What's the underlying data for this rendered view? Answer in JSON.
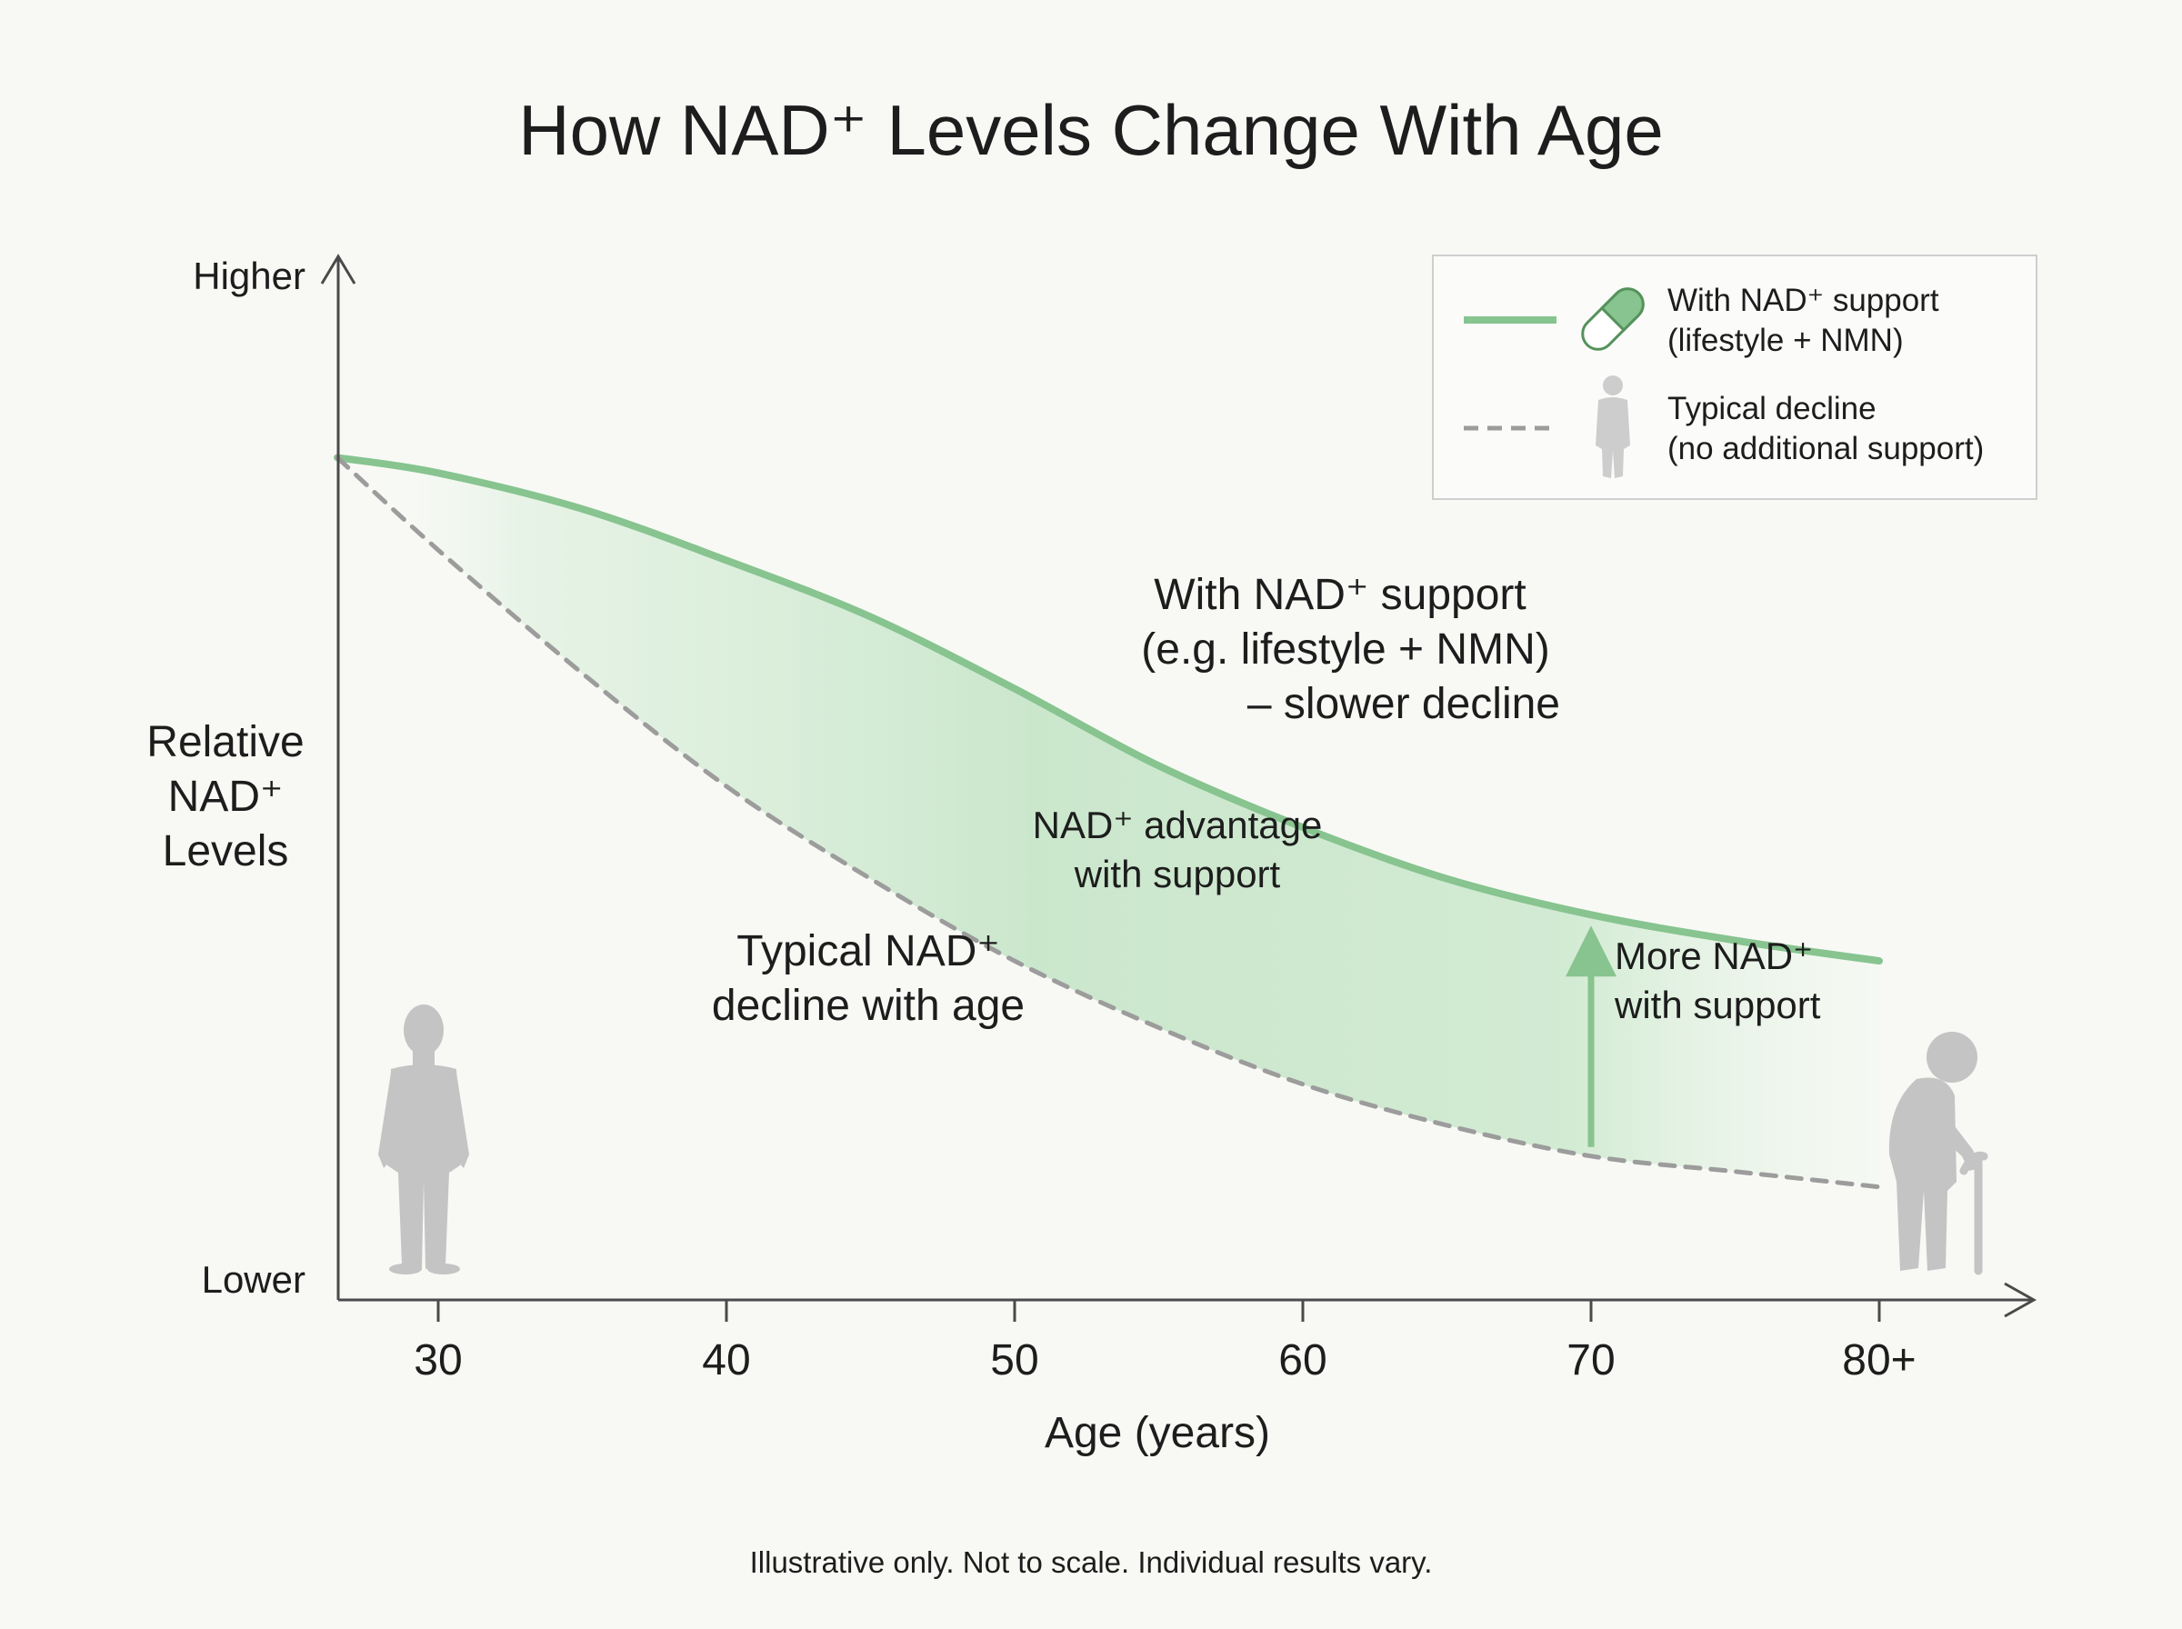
{
  "chart_data": {
    "type": "line",
    "title": "How NAD⁺ Levels Change With Age",
    "xlabel": "Age (years)",
    "ylabel": [
      "Relative",
      "NAD⁺",
      "Levels"
    ],
    "ytick_labels": {
      "top": "Higher",
      "bottom": "Lower"
    },
    "x_ticks": [
      30,
      40,
      50,
      60,
      70,
      80
    ],
    "x_tick_labels": [
      "30",
      "40",
      "50",
      "60",
      "70",
      "80+"
    ],
    "xlim": [
      26.5,
      85
    ],
    "ylim": [
      0,
      100
    ],
    "series": [
      {
        "name": "With NAD⁺ support (lifestyle + NMN)",
        "style": "solid",
        "color": "#87c48f",
        "x": [
          26.5,
          30,
          35,
          40,
          45,
          50,
          55,
          60,
          65,
          70,
          75,
          80
        ],
        "values": [
          82,
          80.5,
          77,
          72,
          66.5,
          59.5,
          52,
          46,
          41,
          37.5,
          35,
          33
        ]
      },
      {
        "name": "Typical decline (no additional support)",
        "style": "dashed",
        "color": "#9c9c9c",
        "x": [
          26.5,
          30,
          35,
          40,
          45,
          50,
          55,
          60,
          65,
          70,
          75,
          80
        ],
        "values": [
          82,
          73,
          61,
          50,
          41,
          33,
          26.5,
          21,
          17,
          14,
          12.5,
          11
        ]
      }
    ],
    "annotations": {
      "support_label": [
        "With NAD⁺ support",
        "(e.g. lifestyle + NMN)",
        "– slower decline"
      ],
      "advantage_label": [
        "NAD⁺ advantage",
        "with support"
      ],
      "typical_label": [
        "Typical NAD⁺",
        "decline with age"
      ],
      "more_label": [
        "More NAD⁺",
        "with support"
      ],
      "arrow_at_age": 70
    },
    "legend": {
      "placement": "top-right",
      "entries": [
        {
          "lines": [
            "With NAD⁺ support",
            "(lifestyle + NMN)"
          ],
          "icon": "pill-capsule-icon"
        },
        {
          "lines": [
            "Typical decline",
            "(no additional support)"
          ],
          "icon": "person-icon"
        }
      ]
    },
    "footnote": "Illustrative only. Not to scale. Individual results vary.",
    "colors": {
      "support": "#87c48f",
      "support_fill": "#bfe2c2",
      "typical": "#9c9c9c",
      "axis": "#4a4a4a",
      "figure": "#c4c4c4"
    }
  }
}
